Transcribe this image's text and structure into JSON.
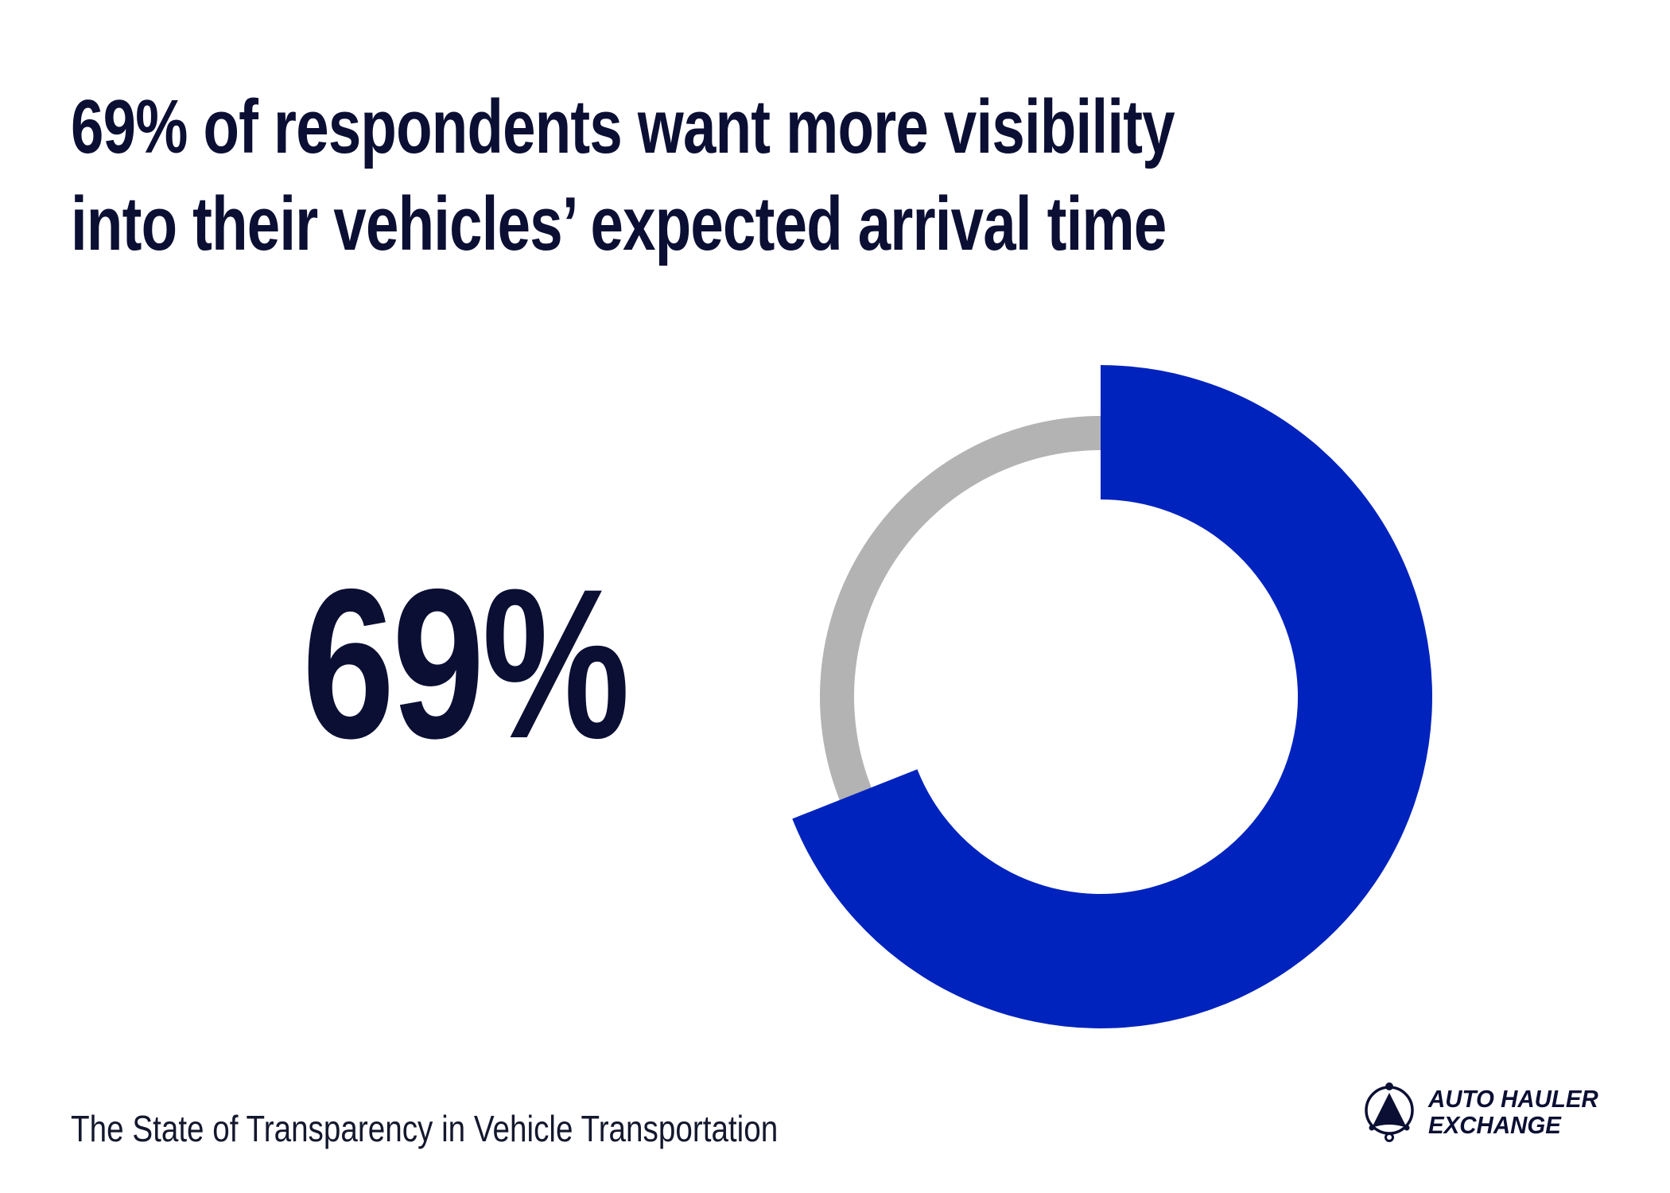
{
  "title": {
    "line1": "69% of respondents want more visibility",
    "line2": "into their vehicles’ expected arrival time"
  },
  "big_value": "69%",
  "footer": "The State of Transparency in Vehicle Transportation",
  "logo": {
    "line1": "AUTO HAULER",
    "line2": "EXCHANGE"
  },
  "colors": {
    "accent": "#0023bd",
    "remainder": "#b3b3b3",
    "text": "#0b0f33"
  },
  "chart_data": {
    "type": "pie",
    "subtype": "donut",
    "values": [
      69,
      31
    ],
    "unit": "%",
    "colors": [
      "#0023bd",
      "#b3b3b3"
    ],
    "start": "top",
    "direction": "clockwise"
  }
}
